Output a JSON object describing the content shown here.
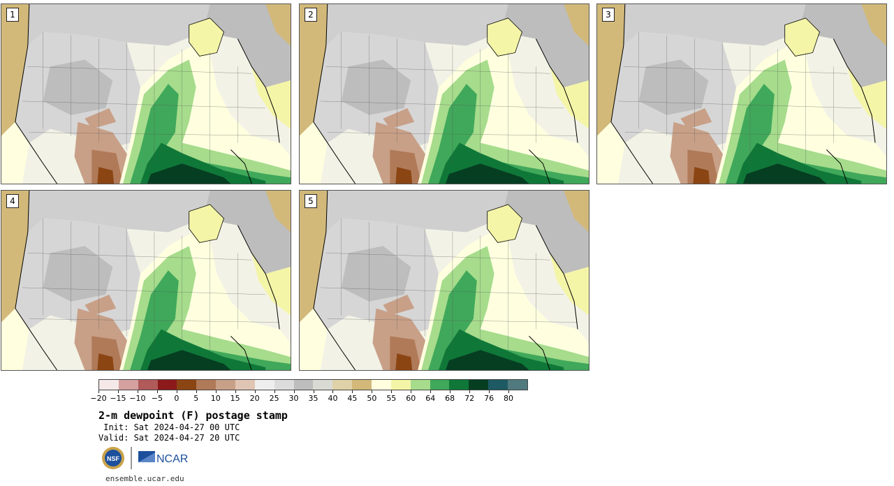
{
  "panels": [
    {
      "label": "1"
    },
    {
      "label": "2"
    },
    {
      "label": "3"
    },
    {
      "label": "4"
    },
    {
      "label": "5"
    }
  ],
  "colorbar": {
    "colors": [
      "#f4e8e8",
      "#d4a0a0",
      "#b05a5a",
      "#8c1a1a",
      "#8b4513",
      "#b07a58",
      "#c8a088",
      "#e0c4b4",
      "#eeeeee",
      "#dcdcdc",
      "#bdbdbd",
      "#dadad4",
      "#e0d2a8",
      "#d2b97a",
      "#ffffe0",
      "#f5f5a8",
      "#a6dc8c",
      "#40a85a",
      "#0f7838",
      "#063e22",
      "#1e5a64",
      "#507a7e"
    ],
    "tick_labels": [
      "−20",
      "−15",
      "−10",
      "−5",
      "0",
      "5",
      "10",
      "15",
      "20",
      "25",
      "30",
      "35",
      "40",
      "45",
      "50",
      "55",
      "60",
      "64",
      "68",
      "72",
      "76",
      "80"
    ]
  },
  "title": "2-m dewpoint (F) postage stamp",
  "init_line": " Init: Sat 2024-04-27 00 UTC",
  "valid_line": "Valid: Sat 2024-04-27 20 UTC",
  "logos": {
    "nsf": "NSF",
    "ncar": "NCAR"
  },
  "site": "ensemble.ucar.edu"
}
